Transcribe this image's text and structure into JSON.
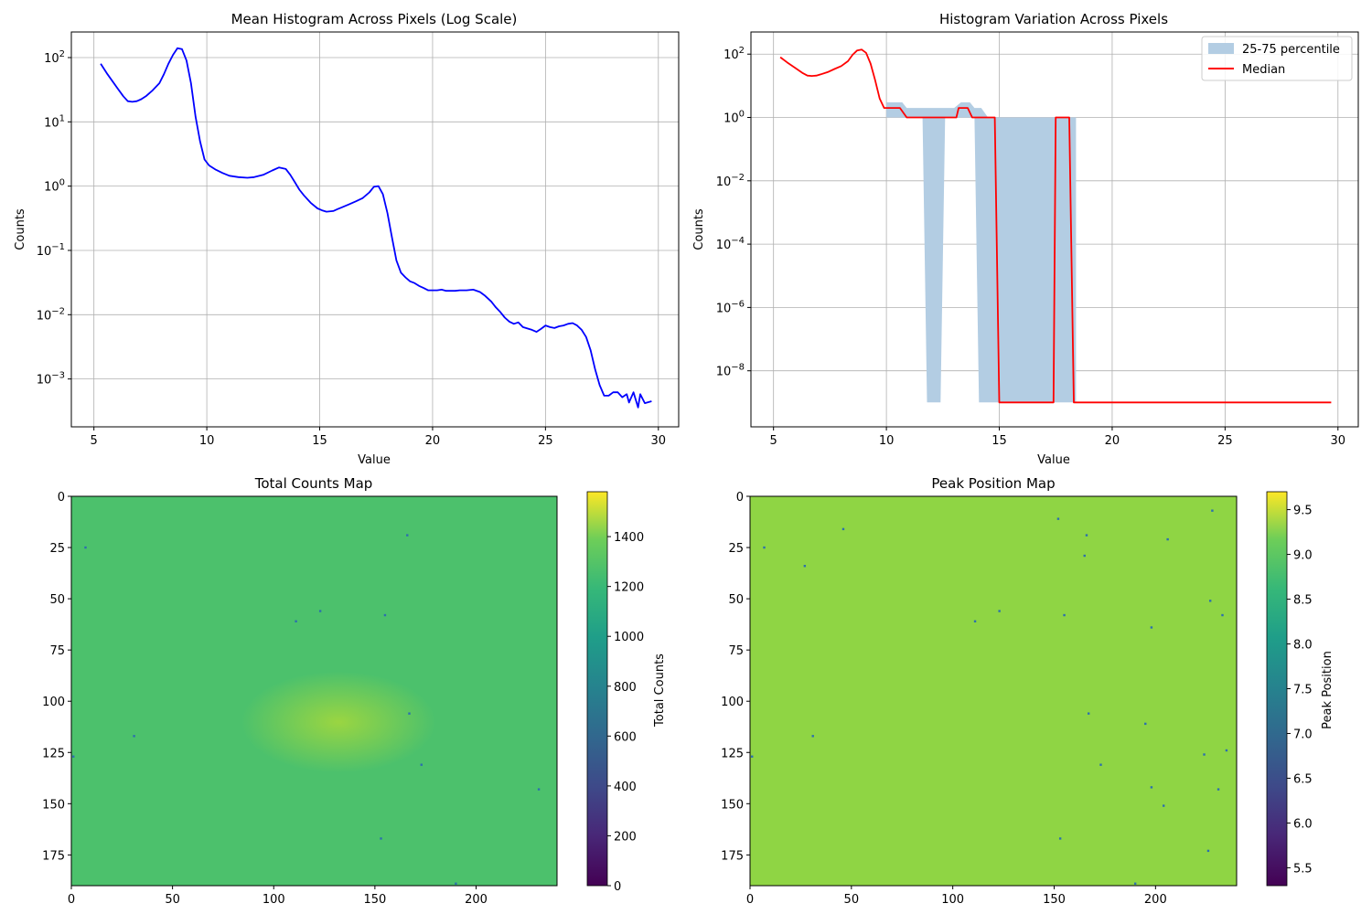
{
  "chart_data": [
    {
      "type": "line",
      "title": "Mean Histogram Across Pixels (Log Scale)",
      "xlabel": "Value",
      "ylabel": "Counts",
      "xlim": [
        4.0,
        30.9
      ],
      "ylim": [
        0.00018,
        250
      ],
      "yscale": "log",
      "grid": true,
      "xticks": [
        "5",
        "10",
        "15",
        "20",
        "25",
        "30"
      ],
      "yticks": [
        {
          "value": 0.001,
          "base": "10",
          "exp": "−3"
        },
        {
          "value": 0.01,
          "base": "10",
          "exp": "−2"
        },
        {
          "value": 0.1,
          "base": "10",
          "exp": "−1"
        },
        {
          "value": 1,
          "base": "10",
          "exp": "0"
        },
        {
          "value": 10,
          "base": "10",
          "exp": "1"
        },
        {
          "value": 100,
          "base": "10",
          "exp": "2"
        }
      ],
      "series": [
        {
          "color": "#0000ff",
          "x": [
            5.3,
            5.6,
            6.0,
            6.3,
            6.5,
            6.7,
            6.9,
            7.1,
            7.3,
            7.6,
            7.9,
            8.1,
            8.3,
            8.5,
            8.7,
            8.9,
            9.1,
            9.3,
            9.5,
            9.7,
            9.9,
            10.1,
            10.4,
            10.7,
            11.0,
            11.4,
            11.8,
            12.1,
            12.5,
            12.9,
            13.2,
            13.5,
            13.7,
            13.9,
            14.1,
            14.3,
            14.6,
            14.9,
            15.1,
            15.3,
            15.6,
            15.8,
            16.0,
            16.3,
            16.6,
            16.9,
            17.2,
            17.4,
            17.6,
            17.8,
            18.0,
            18.2,
            18.4,
            18.6,
            18.8,
            19.0,
            19.2,
            19.4,
            19.6,
            19.8,
            20.0,
            20.2,
            20.4,
            20.6,
            20.8,
            21.0,
            21.2,
            21.5,
            21.8,
            22.1,
            22.3,
            22.6,
            22.8,
            23.0,
            23.2,
            23.4,
            23.6,
            23.8,
            24.0,
            24.2,
            24.4,
            24.6,
            24.8,
            25.0,
            25.2,
            25.4,
            25.6,
            25.8,
            26.0,
            26.2,
            26.4,
            26.6,
            26.8,
            27.0,
            27.2,
            27.4,
            27.6,
            27.8,
            28.0,
            28.2,
            28.4,
            28.6,
            28.7,
            28.9,
            29.1,
            29.2,
            29.4,
            29.7
          ],
          "y": [
            80,
            55,
            35,
            25,
            21,
            20.5,
            21,
            22.5,
            25,
            31,
            40,
            55,
            80,
            110,
            140,
            135,
            90,
            40,
            12,
            5,
            2.6,
            2.1,
            1.8,
            1.6,
            1.45,
            1.38,
            1.35,
            1.38,
            1.5,
            1.75,
            1.95,
            1.85,
            1.5,
            1.15,
            0.88,
            0.72,
            0.55,
            0.45,
            0.42,
            0.4,
            0.41,
            0.44,
            0.47,
            0.52,
            0.58,
            0.65,
            0.8,
            0.98,
            1.0,
            0.75,
            0.38,
            0.16,
            0.07,
            0.045,
            0.038,
            0.033,
            0.031,
            0.028,
            0.026,
            0.024,
            0.024,
            0.024,
            0.0245,
            0.0235,
            0.0235,
            0.0235,
            0.024,
            0.024,
            0.0245,
            0.0225,
            0.02,
            0.016,
            0.013,
            0.011,
            0.009,
            0.0078,
            0.0072,
            0.0076,
            0.0064,
            0.0061,
            0.0058,
            0.0054,
            0.006,
            0.0068,
            0.0064,
            0.0062,
            0.0066,
            0.0068,
            0.0072,
            0.0074,
            0.0068,
            0.0058,
            0.0045,
            0.0028,
            0.0014,
            0.0008,
            0.00055,
            0.00055,
            0.00062,
            0.00062,
            0.00052,
            0.00058,
            0.00043,
            0.00062,
            0.00036,
            0.00058,
            0.00042,
            0.00045
          ]
        }
      ]
    },
    {
      "type": "area",
      "title": "Histogram Variation Across Pixels",
      "xlabel": "Value",
      "ylabel": "Counts",
      "xlim": [
        4.0,
        30.9
      ],
      "ylim": [
        1.7e-10,
        500
      ],
      "yscale": "log",
      "grid": true,
      "legend_position": "top-right",
      "xticks": [
        "5",
        "10",
        "15",
        "20",
        "25",
        "30"
      ],
      "yticks": [
        {
          "value": 1e-08,
          "base": "10",
          "exp": "−8"
        },
        {
          "value": 1e-06,
          "base": "10",
          "exp": "−6"
        },
        {
          "value": 0.0001,
          "base": "10",
          "exp": "−4"
        },
        {
          "value": 0.01,
          "base": "10",
          "exp": "−2"
        },
        {
          "value": 1,
          "base": "10",
          "exp": "0"
        },
        {
          "value": 100,
          "base": "10",
          "exp": "2"
        }
      ],
      "series": [
        {
          "name": "25-75 percentile",
          "kind": "band",
          "color": "#b3cde3",
          "x": [
            10.0,
            10.2,
            10.5,
            10.7,
            10.9,
            11.1,
            11.4,
            11.6,
            11.8,
            11.9,
            12.2,
            12.4,
            12.6,
            12.8,
            13.0,
            13.3,
            13.5,
            13.7,
            13.9,
            14.1,
            14.2,
            14.5,
            14.7,
            14.9,
            15.2,
            15.5,
            15.8,
            16.1,
            16.4,
            16.7,
            17.0,
            17.3,
            17.6,
            17.9,
            18.1,
            18.3,
            18.4
          ],
          "low": [
            1,
            1,
            1,
            1,
            1,
            1,
            1,
            1,
            1e-09,
            1e-09,
            1e-09,
            1e-09,
            1,
            1,
            1,
            1,
            1,
            1,
            1,
            1e-09,
            1e-09,
            1e-09,
            1e-09,
            1e-09,
            1e-09,
            1e-09,
            1e-09,
            1e-09,
            1e-09,
            1e-09,
            1e-09,
            1e-09,
            1e-09,
            1e-09,
            1e-09,
            1e-09,
            1e-09
          ],
          "high": [
            3,
            3,
            3,
            3,
            2,
            2,
            2,
            2,
            2,
            2,
            2,
            2,
            2,
            2,
            2,
            3,
            3,
            3,
            2,
            2,
            2,
            1,
            1,
            1,
            1,
            1,
            1,
            1,
            1,
            1,
            1,
            1,
            1,
            1,
            1,
            1,
            1
          ]
        },
        {
          "name": "Median",
          "kind": "line",
          "color": "#ff0000",
          "x": [
            5.3,
            5.6,
            6.0,
            6.3,
            6.5,
            6.7,
            6.9,
            7.1,
            7.4,
            7.7,
            8.0,
            8.3,
            8.5,
            8.7,
            8.9,
            9.1,
            9.3,
            9.5,
            9.7,
            9.9,
            10.1,
            10.6,
            10.9,
            13.1,
            13.2,
            13.6,
            13.8,
            14.8,
            15.0,
            17.4,
            17.5,
            18.1,
            18.3,
            29.7
          ],
          "y": [
            80,
            55,
            35,
            25,
            21,
            20.5,
            21,
            23,
            27,
            34,
            42,
            60,
            95,
            130,
            140,
            110,
            50,
            15,
            4,
            2,
            2,
            2,
            1,
            1,
            2,
            2,
            1,
            1,
            1e-09,
            1e-09,
            1,
            1,
            1e-09,
            1e-09
          ]
        }
      ]
    },
    {
      "type": "heatmap",
      "title": "Total Counts Map",
      "colorbar_label": "Total Counts",
      "colormap": "viridis",
      "clim": [
        0,
        1580
      ],
      "base_value": 1130,
      "grid": false,
      "xticks": [
        "0",
        "50",
        "100",
        "150",
        "200"
      ],
      "yticks": [
        "0",
        "25",
        "50",
        "75",
        "100",
        "125",
        "150",
        "175"
      ],
      "colorbar_ticks": [
        "0",
        "200",
        "400",
        "600",
        "800",
        "1000",
        "1200",
        "1400"
      ],
      "xlim": [
        0,
        240
      ],
      "ylim": [
        190,
        0
      ],
      "colorbar_tick_values": [
        0,
        200,
        400,
        600,
        800,
        1000,
        1200,
        1400
      ],
      "dead_pixels": [
        [
          7,
          25
        ],
        [
          31,
          117
        ],
        [
          111,
          61
        ],
        [
          123,
          56
        ],
        [
          155,
          58
        ],
        [
          166,
          19
        ],
        [
          167,
          106
        ],
        [
          173,
          131
        ],
        [
          153,
          167
        ],
        [
          190,
          189
        ],
        [
          231,
          143
        ],
        [
          1,
          127
        ]
      ]
    },
    {
      "type": "heatmap",
      "title": "Peak Position Map",
      "colorbar_label": "Peak Position",
      "colormap": "viridis",
      "clim": [
        5.3,
        9.7
      ],
      "base_value": 9.0,
      "grid": false,
      "xticks": [
        "0",
        "50",
        "100",
        "150",
        "200"
      ],
      "yticks": [
        "0",
        "25",
        "50",
        "75",
        "100",
        "125",
        "150",
        "175"
      ],
      "colorbar_ticks": [
        "5.5",
        "6.0",
        "6.5",
        "7.0",
        "7.5",
        "8.0",
        "8.5",
        "9.0",
        "9.5"
      ],
      "xlim": [
        0,
        240
      ],
      "ylim": [
        190,
        0
      ],
      "colorbar_tick_values": [
        5.5,
        6.0,
        6.5,
        7.0,
        7.5,
        8.0,
        8.5,
        9.0,
        9.5
      ],
      "dead_pixels": [
        [
          7,
          25
        ],
        [
          27,
          34
        ],
        [
          31,
          117
        ],
        [
          111,
          61
        ],
        [
          123,
          56
        ],
        [
          152,
          11
        ],
        [
          155,
          58
        ],
        [
          165,
          29
        ],
        [
          166,
          19
        ],
        [
          167,
          106
        ],
        [
          173,
          131
        ],
        [
          153,
          167
        ],
        [
          190,
          189
        ],
        [
          195,
          111
        ],
        [
          198,
          64
        ],
        [
          198,
          142
        ],
        [
          204,
          151
        ],
        [
          206,
          21
        ],
        [
          224,
          126
        ],
        [
          226,
          173
        ],
        [
          227,
          51
        ],
        [
          228,
          7
        ],
        [
          231,
          143
        ],
        [
          233,
          58
        ],
        [
          235,
          124
        ],
        [
          1,
          127
        ],
        [
          46,
          16
        ]
      ]
    }
  ]
}
